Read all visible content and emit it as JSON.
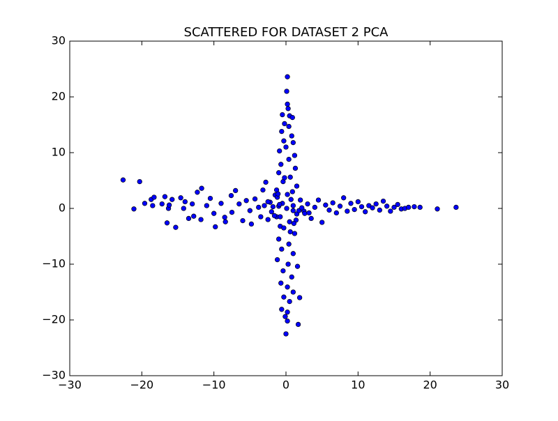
{
  "chart_data": {
    "type": "scatter",
    "title": "SCATTERED FOR DATASET 2 PCA",
    "color": "#0000ff",
    "xlim": [
      -30,
      30
    ],
    "ylim": [
      -30,
      30
    ],
    "xticks": [
      {
        "value": -30,
        "label": "−30"
      },
      {
        "value": -20,
        "label": "−20"
      },
      {
        "value": -10,
        "label": "−10"
      },
      0,
      10,
      20,
      30
    ],
    "yticks": [
      {
        "value": -30,
        "label": "−30"
      },
      {
        "value": -20,
        "label": "−20"
      },
      {
        "value": -10,
        "label": "−10"
      },
      0,
      10,
      20,
      30
    ],
    "x": [
      -22.6,
      -20.3,
      -21.1,
      -19.6,
      -18.7,
      -18.5,
      -18.3,
      -17.2,
      -16.8,
      -16.5,
      -16.3,
      -16.2,
      -15.8,
      -15.3,
      -14.6,
      -14.0,
      -14.2,
      -13.5,
      -12.8,
      -13.0,
      -12.3,
      -11.7,
      -11.8,
      -11.0,
      -10.5,
      -10.0,
      -9.8,
      -9.0,
      -8.5,
      -8.4,
      -7.6,
      -7.0,
      -7.5,
      -6.5,
      -6.0,
      -5.5,
      -5.0,
      -4.8,
      -4.3,
      -3.8,
      -3.5,
      -3.2,
      -2.8,
      -2.5,
      -2.2,
      -2.0,
      -1.5,
      -1.3,
      -1.0,
      -0.8,
      1.0,
      1.5,
      2.0,
      2.5,
      3.0,
      3.5,
      4.0,
      4.5,
      5.0,
      5.5,
      6.0,
      6.5,
      7.0,
      7.5,
      8.0,
      8.5,
      9.0,
      9.5,
      10.0,
      10.5,
      11.0,
      11.5,
      12.0,
      12.5,
      13.0,
      13.5,
      14.0,
      14.5,
      15.0,
      15.5,
      16.0,
      16.5,
      17.0,
      17.8,
      18.6,
      21.0,
      23.6,
      0.2,
      0.1,
      0.2,
      0.3,
      -0.5,
      0.5,
      0.9,
      -0.2,
      0.4,
      -0.6,
      0.8,
      -0.3,
      1.0,
      0.0,
      -0.9,
      1.2,
      0.4,
      -0.7,
      1.3,
      -1.0,
      0.6,
      -0.4,
      1.5,
      -1.3,
      0.2,
      0.7,
      -0.5,
      0.1,
      1.0,
      -0.8,
      0.5,
      -0.3,
      1.2,
      -1.0,
      0.4,
      -0.6,
      1.0,
      -1.2,
      0.3,
      1.6,
      -0.4,
      0.8,
      -0.7,
      0.2,
      1.0,
      -0.3,
      0.5,
      1.9,
      -0.6,
      0.2,
      -0.1,
      0.2,
      1.7,
      0.0,
      -1.8,
      1.8,
      -2.5,
      2.6,
      -1.2,
      1.4,
      -0.9,
      0.9,
      -1.6,
      2.2,
      -3.0,
      3.2,
      -0.2,
      0.6,
      -1.1,
      1.1
    ],
    "values": [
      5.1,
      4.8,
      -0.1,
      0.9,
      1.6,
      0.5,
      2.0,
      0.8,
      2.1,
      -2.6,
      0.0,
      0.6,
      1.6,
      -3.4,
      1.9,
      1.2,
      0.0,
      -1.8,
      -1.4,
      0.8,
      2.9,
      3.6,
      -2.0,
      0.5,
      1.8,
      -0.9,
      -3.3,
      0.9,
      -1.6,
      -2.4,
      2.3,
      3.2,
      -0.7,
      0.8,
      -2.2,
      1.4,
      -0.4,
      -2.8,
      1.7,
      0.2,
      -1.5,
      3.3,
      4.7,
      -2.0,
      1.1,
      -0.6,
      2.4,
      -1.5,
      0.4,
      -3.2,
      0.5,
      -1.0,
      1.5,
      -0.5,
      0.8,
      -1.8,
      0.2,
      1.5,
      -2.5,
      0.6,
      -0.3,
      1.0,
      -0.8,
      0.4,
      1.9,
      -0.5,
      0.9,
      -0.2,
      1.2,
      0.3,
      -0.6,
      0.5,
      0.1,
      0.8,
      -0.3,
      1.3,
      0.4,
      -0.5,
      0.2,
      0.7,
      -0.1,
      0.0,
      0.2,
      0.3,
      0.2,
      -0.1,
      0.2,
      23.6,
      21.0,
      18.7,
      17.9,
      16.8,
      16.6,
      16.3,
      15.2,
      14.7,
      13.8,
      13.0,
      12.1,
      11.8,
      11.0,
      10.3,
      9.5,
      8.8,
      7.9,
      7.2,
      6.4,
      5.6,
      4.8,
      4.0,
      3.3,
      2.5,
      1.6,
      0.9,
      0.0,
      -0.4,
      -1.5,
      -2.4,
      -3.5,
      -4.5,
      -5.5,
      -6.4,
      -7.3,
      -8.1,
      -9.2,
      -10.0,
      -10.4,
      -11.2,
      -12.3,
      -13.4,
      -14.1,
      -15.0,
      -15.9,
      -16.7,
      -16.0,
      -18.1,
      -18.6,
      -19.4,
      -20.2,
      -20.8,
      -22.5,
      0.3,
      -0.4,
      1.2,
      -0.9,
      2.0,
      -2.1,
      0.7,
      3.0,
      -1.3,
      0.1,
      0.5,
      -0.8,
      5.5,
      -4.2,
      2.6,
      -2.7
    ]
  }
}
